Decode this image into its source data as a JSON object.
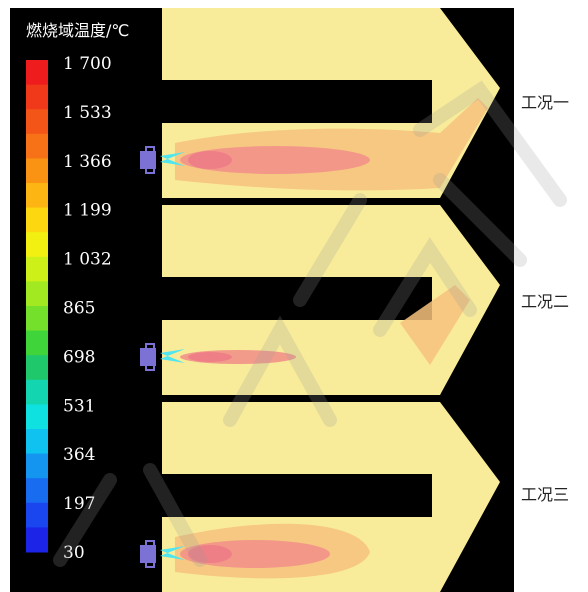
{
  "legend": {
    "title": "燃烧域温度/℃",
    "ticks": [
      "1 700",
      "1 533",
      "1 366",
      "1 199",
      "1 032",
      "865",
      "698",
      "531",
      "364",
      "197",
      "30"
    ],
    "colors": [
      "#ee1c1c",
      "#f0381a",
      "#f35418",
      "#f77116",
      "#fa9214",
      "#fcb512",
      "#fdd70f",
      "#f2f010",
      "#cdf019",
      "#a3e922",
      "#74e02b",
      "#3fd43a",
      "#1fc86a",
      "#13d6b0",
      "#0fe0e0",
      "#0fc2ef",
      "#1496f0",
      "#186cf0",
      "#1a46f0",
      "#1c24e8"
    ]
  },
  "cases": [
    {
      "label": "工况一",
      "flame": "long"
    },
    {
      "label": "工况二",
      "flame": "short"
    },
    {
      "label": "工况三",
      "flame": "wide"
    }
  ],
  "watermark": "浙校所有",
  "colors": {
    "background": "#000000",
    "domain": "#f8ec9a",
    "warm": "#f7c27e",
    "hot": "#f2928a",
    "burner": "#7c72d6",
    "jet": "#4fe6f0"
  }
}
